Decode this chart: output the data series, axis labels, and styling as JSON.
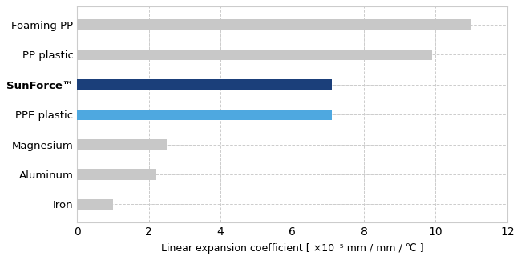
{
  "categories": [
    "Foaming PP",
    "PP plastic",
    "SunForce™",
    "PPE plastic",
    "Magnesium",
    "Aluminum",
    "Iron"
  ],
  "values": [
    11.0,
    9.9,
    7.1,
    7.1,
    2.5,
    2.2,
    1.0
  ],
  "colors": [
    "#c8c8c8",
    "#c8c8c8",
    "#1b3f7a",
    "#4ea8e0",
    "#c8c8c8",
    "#c8c8c8",
    "#c8c8c8"
  ],
  "xlabel": "Linear expansion coefficient [ ×10⁻⁵ mm / mm / ℃ ]",
  "xlim": [
    0,
    12
  ],
  "xticks": [
    0,
    2,
    4,
    6,
    8,
    10,
    12
  ],
  "background_color": "#ffffff",
  "grid_color": "#cccccc",
  "bar_height": 0.35,
  "bold_label": "SunForce™",
  "label_fontsize": 9.5,
  "tick_fontsize": 10,
  "xlabel_fontsize": 9
}
